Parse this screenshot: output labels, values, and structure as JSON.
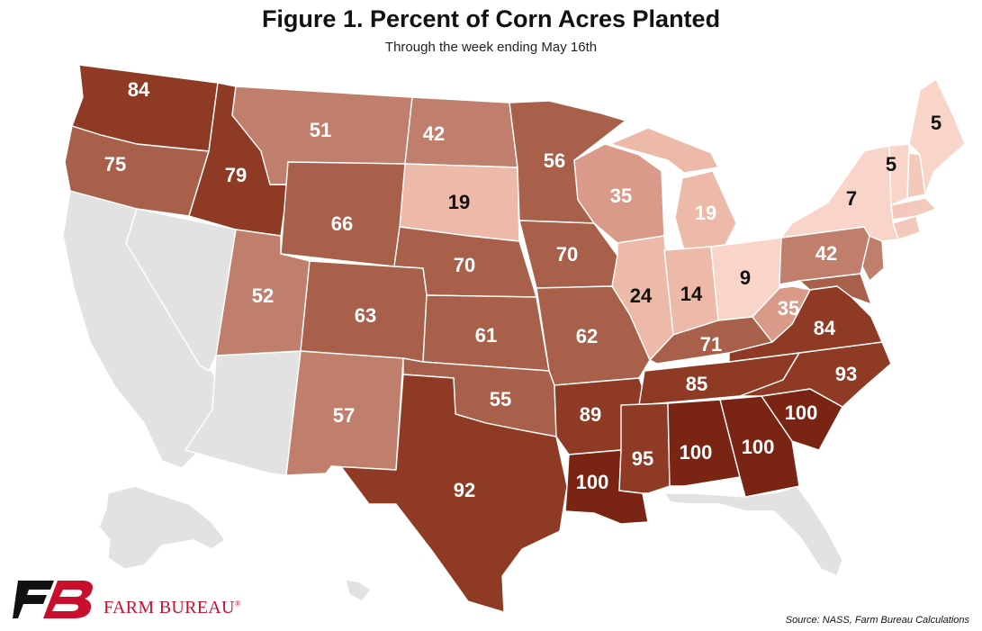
{
  "title": "Figure 1. Percent of Corn Acres Planted",
  "subtitle": "Through the week ending May 16th",
  "source": "Source: NASS, Farm Bureau Calculations",
  "brand": {
    "name": "FARM BUREAU",
    "mark": "®",
    "logo_text": "FB"
  },
  "colors": {
    "no_data": "#e2e2e2",
    "scale": [
      "#f9d5c9",
      "#edb9a8",
      "#d99a8a",
      "#c07f6d",
      "#a8604a",
      "#8f3a24",
      "#7a2414"
    ]
  },
  "states": {
    "WA": 84,
    "OR": 75,
    "ID": 79,
    "MT": 51,
    "ND": 42,
    "SD": 19,
    "WY": 66,
    "NE": 70,
    "UT": 52,
    "CO": 63,
    "KS": 61,
    "NM": 57,
    "OK": 55,
    "TX": 92,
    "MN": 56,
    "IA": 70,
    "MO": 62,
    "AR": 89,
    "LA": 100,
    "WI": 35,
    "IL": 24,
    "MI": 19,
    "IN": 14,
    "OH": 9,
    "KY": 71,
    "TN": 85,
    "MS": 95,
    "AL": 100,
    "GA": 100,
    "SC": 100,
    "NC": 93,
    "VA": 84,
    "WV": 35,
    "PA": 42,
    "NY": 7,
    "VT": 5,
    "ME": 5
  }
}
